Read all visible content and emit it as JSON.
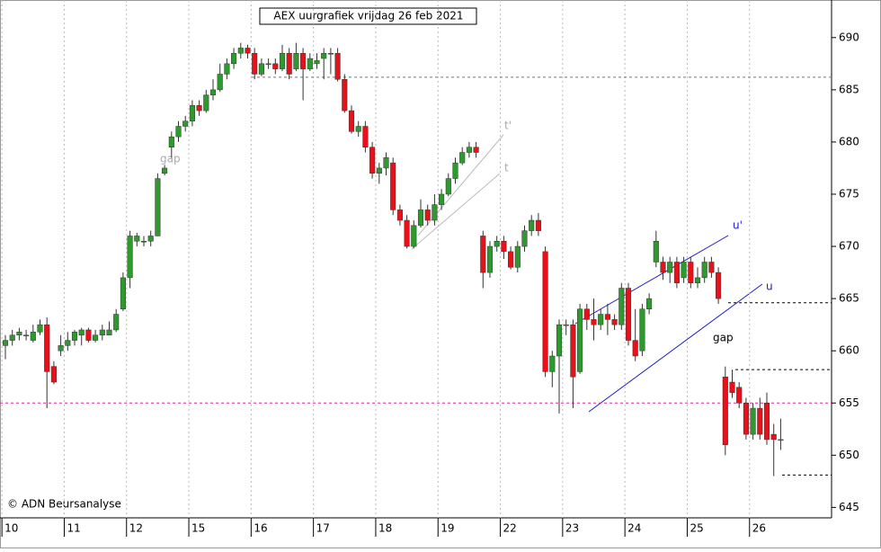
{
  "chart_data": {
    "type": "candlestick",
    "title": "AEX uurgrafiek vrijdag 26 feb 2021",
    "source": "© ADN Beursanalyse",
    "categories": [
      "10",
      null,
      null,
      null,
      null,
      null,
      null,
      null,
      null,
      "11",
      null,
      null,
      null,
      null,
      null,
      null,
      null,
      null,
      "12",
      null,
      null,
      null,
      null,
      null,
      null,
      null,
      null,
      "15",
      null,
      null,
      null,
      null,
      null,
      null,
      null,
      null,
      "16",
      null,
      null,
      null,
      null,
      null,
      null,
      null,
      null,
      "17",
      null,
      null,
      null,
      null,
      null,
      null,
      null,
      null,
      "18",
      null,
      null,
      null,
      null,
      null,
      null,
      null,
      null,
      "19",
      null,
      null,
      null,
      null,
      null,
      null,
      null,
      null,
      "22",
      null,
      null,
      null,
      null,
      null,
      null,
      null,
      null,
      "23",
      null,
      null,
      null,
      null,
      null,
      null,
      null,
      null,
      "24",
      null,
      null,
      null,
      null,
      null,
      null,
      null,
      null,
      "25",
      null,
      null,
      null,
      null,
      null,
      null,
      null,
      null,
      "26",
      null,
      null,
      null,
      null
    ],
    "open": [
      660.5,
      661,
      661.5,
      661.5,
      661,
      661.8,
      662.5,
      658.5,
      660,
      660.5,
      661,
      661.5,
      662,
      661,
      661.5,
      661.5,
      662,
      664,
      667,
      670.5,
      670.5,
      670.5,
      671,
      677,
      679.5,
      680.5,
      681.5,
      682,
      683.5,
      683,
      684.5,
      685,
      686.5,
      687.5,
      688.5,
      689,
      688.5,
      686.5,
      687.5,
      687.5,
      687,
      688.5,
      687,
      688.5,
      687,
      687.5,
      688,
      688.5,
      688.5,
      686,
      683,
      681,
      681.5,
      679.5,
      677,
      677.5,
      678,
      673.5,
      672.5,
      670,
      672,
      673.5,
      672.5,
      674,
      675,
      676.5,
      678,
      679,
      679.5,
      671,
      667.5,
      670,
      670.5,
      669.5,
      668,
      670,
      671.5,
      672.5,
      669.5,
      658,
      659.5,
      662.5,
      662.5,
      658,
      664,
      663,
      662.5,
      663.5,
      663,
      662.5,
      666,
      661,
      660,
      664,
      668.5,
      668.5,
      667.5,
      668.5,
      667,
      668.5,
      666.5,
      667,
      668.5,
      667.5,
      657.5,
      657,
      656.5,
      655,
      652,
      654.5,
      655,
      652,
      651.5
    ],
    "high": [
      661.5,
      662,
      662.2,
      662,
      662.5,
      663,
      663.2,
      659,
      661.5,
      661.8,
      662,
      662.2,
      662.2,
      662,
      662.5,
      662.8,
      664,
      667.5,
      671.5,
      671.3,
      671,
      671.5,
      677,
      677.8,
      681,
      682,
      682.5,
      684,
      684,
      685,
      686,
      687.5,
      688,
      689,
      689.5,
      689.3,
      689,
      688,
      688,
      688,
      689.3,
      689,
      689.5,
      689,
      688.5,
      688.5,
      689,
      689,
      689,
      686.5,
      683.5,
      682,
      682,
      680,
      678,
      679,
      678.5,
      674,
      673,
      672.5,
      674.5,
      674,
      675,
      675.5,
      677,
      678.5,
      679.5,
      680,
      680,
      671.5,
      670.5,
      671,
      671,
      670,
      670.5,
      672,
      673,
      673.2,
      670,
      660,
      663,
      663,
      663,
      664.5,
      664.5,
      665,
      664,
      664.5,
      663.5,
      666.5,
      666.5,
      664,
      664.5,
      665.5,
      671.5,
      669,
      669,
      669,
      669,
      669,
      668,
      669,
      669,
      668,
      658.5,
      658.2,
      657,
      655.5,
      655,
      655.5,
      656,
      653,
      653.5
    ],
    "low": [
      659.2,
      660.5,
      661,
      661,
      660.8,
      661.5,
      654.5,
      656.8,
      659.5,
      660,
      660.5,
      660.5,
      660.8,
      660.8,
      661,
      661.5,
      661.8,
      663.8,
      666,
      670,
      670,
      670,
      671,
      676.8,
      678.5,
      680,
      681,
      681.5,
      682.5,
      682.8,
      684,
      684.8,
      686,
      687,
      688,
      688,
      686,
      686.3,
      687,
      686.5,
      686.8,
      686,
      686.8,
      684,
      686.8,
      687,
      686,
      686.5,
      685.8,
      682.8,
      680.8,
      680.5,
      679,
      676.5,
      676,
      676.8,
      673,
      672,
      669.8,
      669.8,
      671.8,
      672,
      672,
      673.5,
      674.8,
      676,
      677.8,
      678.5,
      678.5,
      666,
      667,
      669.5,
      668.8,
      667.8,
      667.5,
      669.5,
      671,
      671,
      657.5,
      656.5,
      654,
      661.5,
      654.5,
      657.8,
      662,
      661,
      662,
      661.5,
      662,
      662,
      660.5,
      659,
      659.5,
      663.5,
      668,
      666.8,
      666.5,
      666,
      666.5,
      666,
      666,
      666.5,
      667,
      664.5,
      650,
      655.5,
      654.5,
      651.5,
      651.5,
      651.5,
      651,
      648,
      650.5
    ],
    "close": [
      661,
      661.5,
      661.8,
      661.5,
      661.8,
      662.5,
      658,
      657,
      660.5,
      661,
      661.8,
      662,
      661,
      661.5,
      662,
      662,
      663.5,
      667,
      671,
      671,
      670.5,
      671,
      676.5,
      677.5,
      680.5,
      681.5,
      682,
      683.5,
      683,
      684.5,
      685,
      686.5,
      687.5,
      688.5,
      689,
      688.5,
      686.5,
      687.5,
      687.5,
      687,
      688.5,
      686.5,
      688.5,
      687,
      688,
      687.8,
      688.5,
      688.5,
      686,
      683,
      681,
      681.5,
      679.5,
      677,
      677.5,
      678.5,
      673.5,
      672.5,
      670,
      672,
      673.5,
      672.5,
      674,
      675,
      676.5,
      678,
      679,
      679.5,
      679,
      667.5,
      670,
      670.5,
      669.5,
      668,
      670,
      671.5,
      672.5,
      671.5,
      658,
      659.5,
      662.5,
      662.5,
      657.5,
      664,
      663,
      662.5,
      663.5,
      663,
      662.5,
      666,
      661,
      659.5,
      664,
      665,
      670.5,
      667.5,
      668.5,
      666.5,
      668.5,
      666.5,
      667,
      668.5,
      667.5,
      665,
      651,
      656,
      655,
      652,
      654.5,
      652,
      651.5,
      651.5,
      651.5
    ],
    "up_color": "#2e9a2e",
    "down_color": "#e8111a",
    "ylim": [
      644,
      693.6
    ],
    "yticks": [
      645,
      650,
      655,
      660,
      665,
      670,
      675,
      680,
      685,
      690
    ],
    "grid": true,
    "reference_lines": [
      {
        "value": 686.2,
        "color": "#777777"
      },
      {
        "value": 655,
        "color": "#cc3399"
      },
      {
        "value": 664.6,
        "color": "#000000"
      },
      {
        "value": 658.2,
        "color": "#000000"
      },
      {
        "value": 648.1,
        "color": "#000000"
      }
    ],
    "annotations": [
      "gap",
      "t'",
      "t",
      "u'",
      "u",
      "gap"
    ]
  }
}
